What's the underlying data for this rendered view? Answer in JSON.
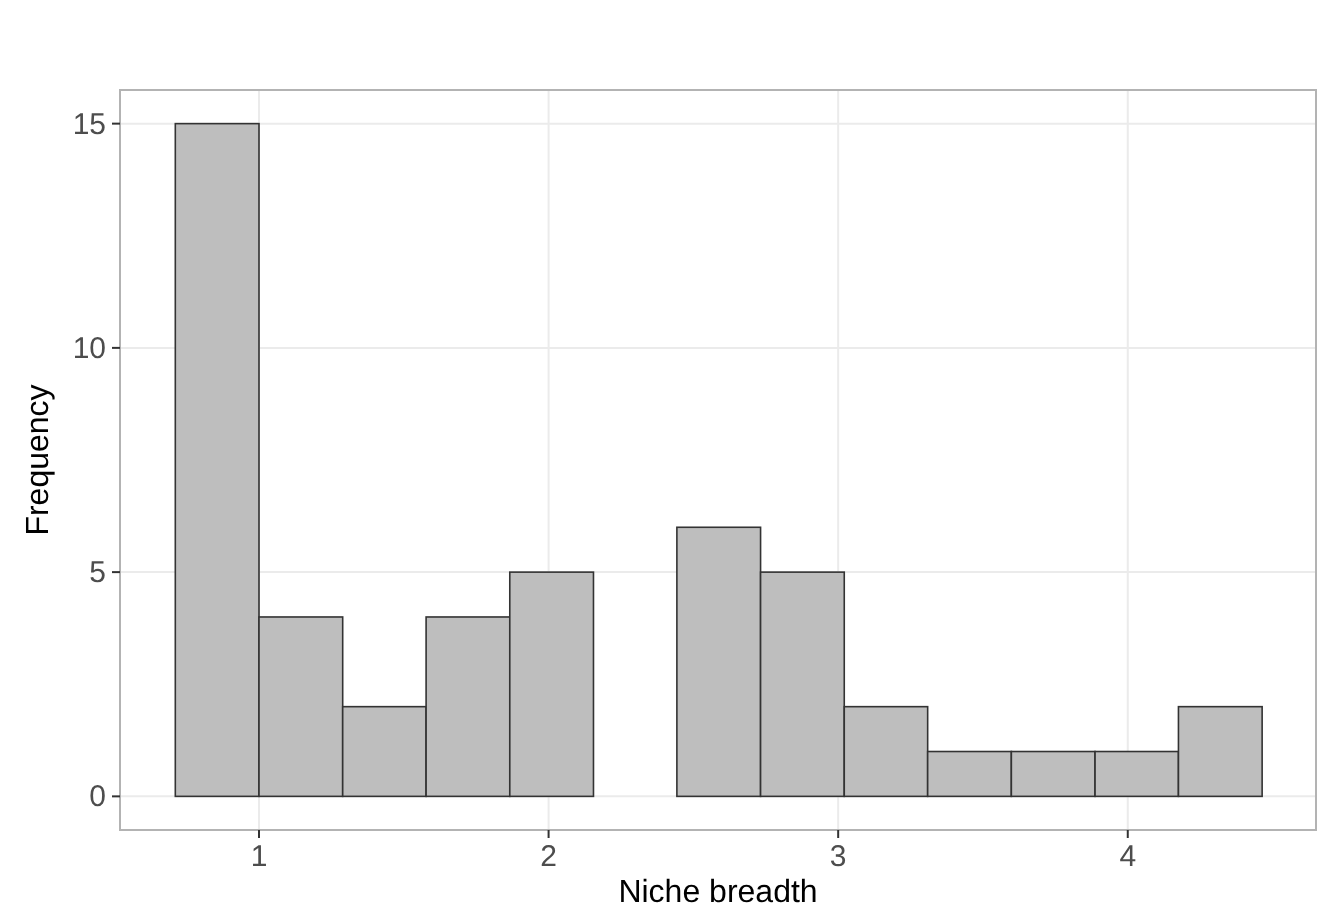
{
  "chart_data": {
    "type": "histogram",
    "xlabel": "Niche breadth",
    "ylabel": "Frequency",
    "bins": [
      0.711,
      1.0,
      1.289,
      1.577,
      1.866,
      2.155,
      2.443,
      2.732,
      3.021,
      3.309,
      3.598,
      3.887,
      4.175,
      4.464
    ],
    "values": [
      15,
      4,
      2,
      4,
      5,
      0,
      6,
      5,
      2,
      1,
      1,
      1,
      2
    ],
    "color": "#bebebe",
    "xlim": [
      0.52,
      4.65
    ],
    "xticks": [
      1,
      2,
      3,
      4
    ],
    "ylim": [
      -0.75,
      15.75
    ],
    "yticks": [
      0,
      5,
      10,
      15
    ],
    "grid": true
  }
}
